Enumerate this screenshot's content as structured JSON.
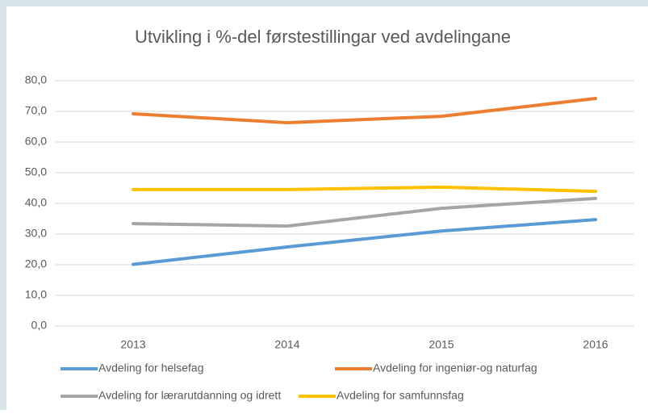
{
  "chart_data": {
    "type": "line",
    "title": "Utvikling i %-del førstestillingar ved avdelingane",
    "categories": [
      "2013",
      "2014",
      "2015",
      "2016"
    ],
    "series": [
      {
        "name": "Avdeling for helsefag",
        "color": "#5b9bd5",
        "values": [
          20.1,
          25.8,
          31.0,
          34.7
        ]
      },
      {
        "name": "Avdeling for ingeniør-og naturfag",
        "color": "#ed7d31",
        "values": [
          69.2,
          66.3,
          68.4,
          74.2
        ]
      },
      {
        "name": "Avdeling for lærarutdanning og idrett",
        "color": "#a5a5a5",
        "values": [
          33.4,
          32.6,
          38.4,
          41.6
        ]
      },
      {
        "name": "Avdeling for samfunnsfag",
        "color": "#ffc000",
        "values": [
          44.5,
          44.5,
          45.3,
          43.9
        ]
      }
    ],
    "ylim": [
      0,
      80
    ],
    "yticks": [
      {
        "value": 0,
        "label": "0,0"
      },
      {
        "value": 10,
        "label": "10,0"
      },
      {
        "value": 20,
        "label": "20,0"
      },
      {
        "value": 30,
        "label": "30,0"
      },
      {
        "value": 40,
        "label": "40,0"
      },
      {
        "value": 50,
        "label": "50,0"
      },
      {
        "value": 60,
        "label": "60,0"
      },
      {
        "value": 70,
        "label": "70,0"
      },
      {
        "value": 80,
        "label": "80,0"
      }
    ],
    "grid": true
  }
}
